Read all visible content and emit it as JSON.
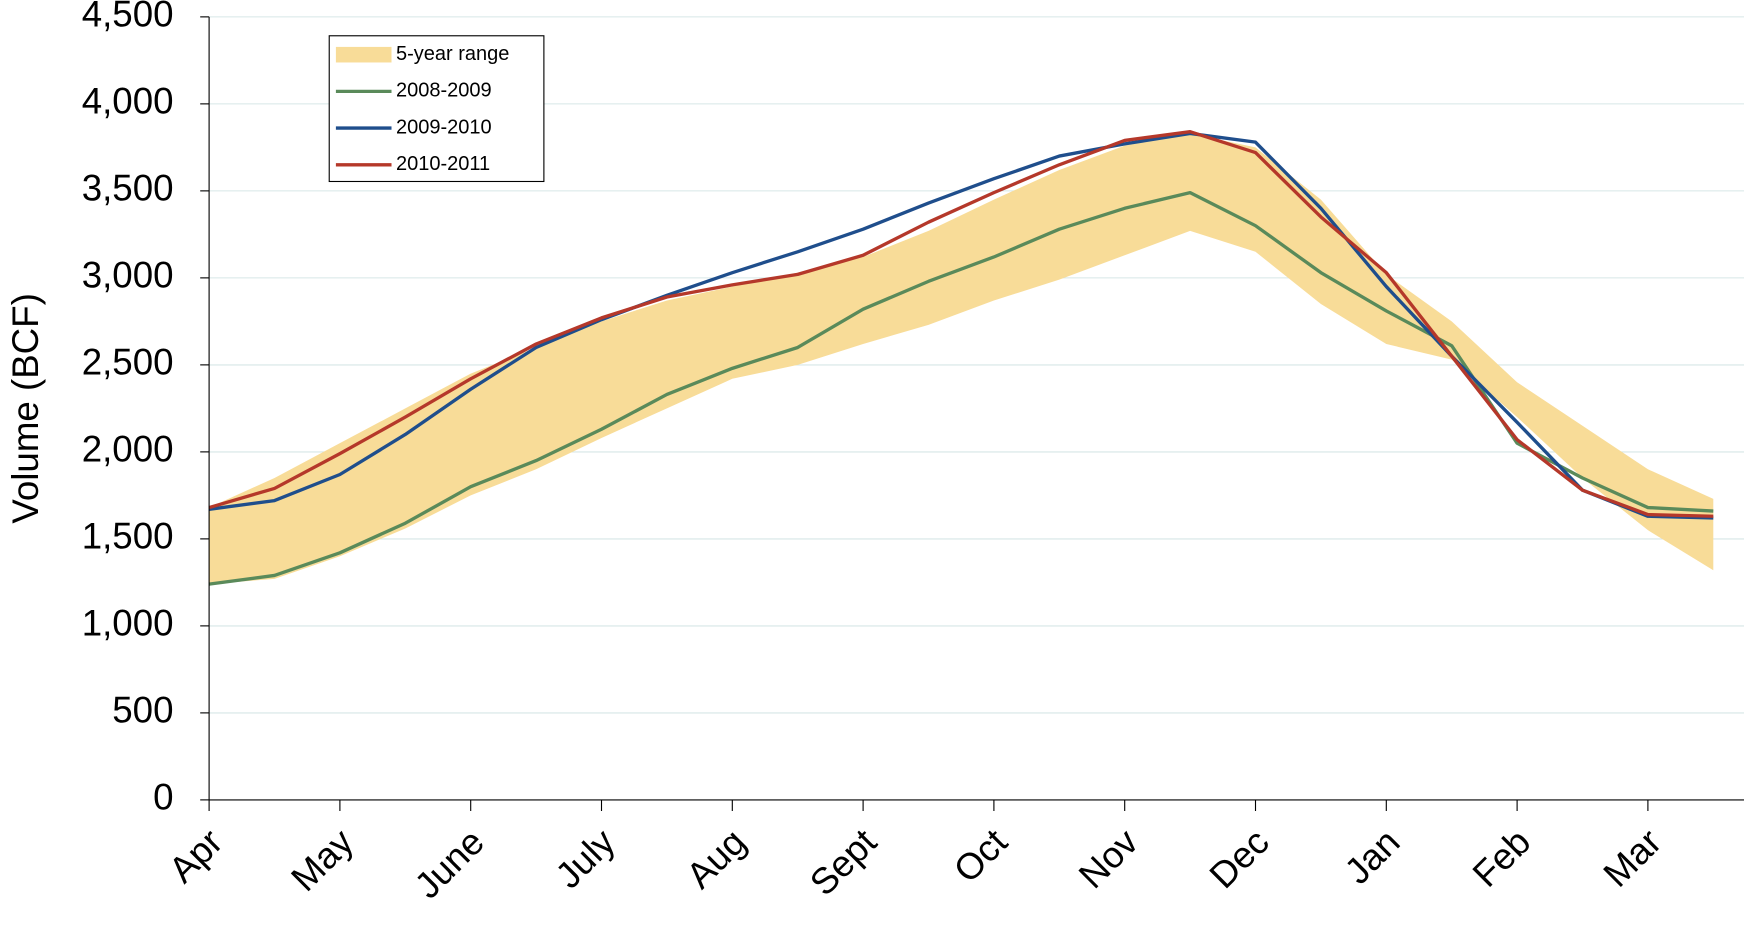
{
  "chart_data": {
    "type": "line",
    "y_label": "Volume (BCF)",
    "categories": [
      "Apr",
      null,
      "May",
      null,
      "June",
      null,
      "July",
      null,
      "Aug",
      null,
      "Sept",
      null,
      "Oct",
      null,
      "Nov",
      null,
      "Dec",
      null,
      "Jan",
      null,
      "Feb",
      null,
      "Mar",
      null
    ],
    "ylim": [
      0,
      4500
    ],
    "yticks": [
      0,
      500,
      {
        "value": 1000,
        "label": "1,000"
      },
      {
        "value": 1500,
        "label": "1,500"
      },
      {
        "value": 2000,
        "label": "2,000"
      },
      {
        "value": 2500,
        "label": "2,500"
      },
      {
        "value": 3000,
        "label": "3,000"
      },
      {
        "value": 3500,
        "label": "3,500"
      },
      {
        "value": 4000,
        "label": "4,000"
      },
      {
        "value": 4500,
        "label": "4,500"
      }
    ],
    "grid": true,
    "range": {
      "name": "5-year range",
      "color": "#f8dc98",
      "low": [
        1240,
        1270,
        1400,
        1560,
        1750,
        1900,
        2080,
        2250,
        2420,
        2500,
        2620,
        2730,
        2870,
        2990,
        3130,
        3270,
        3150,
        2850,
        2620,
        2530,
        2200,
        1850,
        1550,
        1320
      ],
      "high": [
        1680,
        1850,
        2050,
        2250,
        2450,
        2600,
        2750,
        2870,
        2950,
        3030,
        3120,
        3270,
        3450,
        3620,
        3760,
        3830,
        3750,
        3450,
        3020,
        2750,
        2400,
        2150,
        1900,
        1730
      ]
    },
    "series": [
      {
        "name": "2008-2009",
        "color": "#5a8a5a",
        "values": [
          1240,
          1290,
          1420,
          1590,
          1800,
          1950,
          2130,
          2330,
          2480,
          2600,
          2820,
          2980,
          3120,
          3280,
          3400,
          3490,
          3300,
          3030,
          2810,
          2610,
          2050,
          1850,
          1680,
          1660
        ]
      },
      {
        "name": "2009-2010",
        "color": "#1f4e8c",
        "values": [
          1670,
          1720,
          1870,
          2100,
          2360,
          2600,
          2760,
          2900,
          3030,
          3150,
          3280,
          3430,
          3570,
          3700,
          3770,
          3830,
          3780,
          3400,
          2950,
          2550,
          2170,
          1780,
          1630,
          1620
        ]
      },
      {
        "name": "2010-2011",
        "color": "#b5382a",
        "values": [
          1680,
          1790,
          1990,
          2200,
          2420,
          2620,
          2770,
          2890,
          2960,
          3020,
          3130,
          3320,
          3490,
          3650,
          3790,
          3840,
          3720,
          3350,
          3030,
          2550,
          2070,
          1780,
          1640,
          1630
        ]
      }
    ],
    "legend": "top-left"
  }
}
